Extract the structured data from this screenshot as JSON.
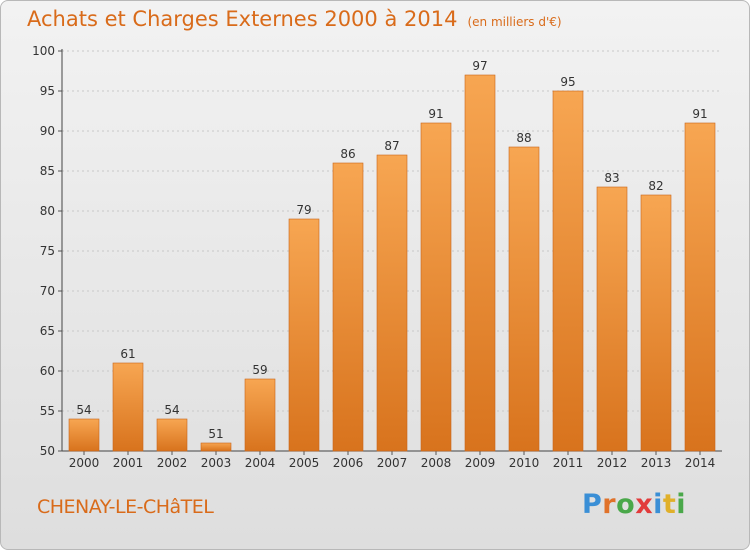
{
  "header": {
    "title": "Achats et Charges Externes 2000 à 2014",
    "unit": "(en milliers d'€)"
  },
  "footer": {
    "town": "CHENAY-LE-CHâTEL",
    "brand": "Proxiti",
    "brand_letters": [
      {
        "char": "P",
        "color": "#3a8fd6"
      },
      {
        "char": "r",
        "color": "#e0722a"
      },
      {
        "char": "o",
        "color": "#4aa84a"
      },
      {
        "char": "x",
        "color": "#e23b3b"
      },
      {
        "char": "i",
        "color": "#3a8fd6"
      },
      {
        "char": "t",
        "color": "#e0b02a"
      },
      {
        "char": "i",
        "color": "#4aa84a"
      }
    ]
  },
  "chart_data": {
    "type": "bar",
    "title": "Achats et Charges Externes 2000 à 2014",
    "subtitle": "(en milliers d'€)",
    "categories": [
      "2000",
      "2001",
      "2002",
      "2003",
      "2004",
      "2005",
      "2006",
      "2007",
      "2008",
      "2009",
      "2010",
      "2011",
      "2012",
      "2013",
      "2014"
    ],
    "values": [
      54,
      61,
      54,
      51,
      59,
      79,
      86,
      87,
      91,
      97,
      88,
      95,
      83,
      82,
      91
    ],
    "ylim": [
      50,
      100
    ],
    "yticks": [
      50,
      55,
      60,
      65,
      70,
      75,
      80,
      85,
      90,
      95,
      100
    ],
    "grid": true,
    "colors": {
      "bar_top": "#f7a652",
      "bar_bottom": "#d8731d",
      "bar_edge": "#c9651a",
      "text": "#d96b1a",
      "grid": "#c8c8c8"
    }
  }
}
